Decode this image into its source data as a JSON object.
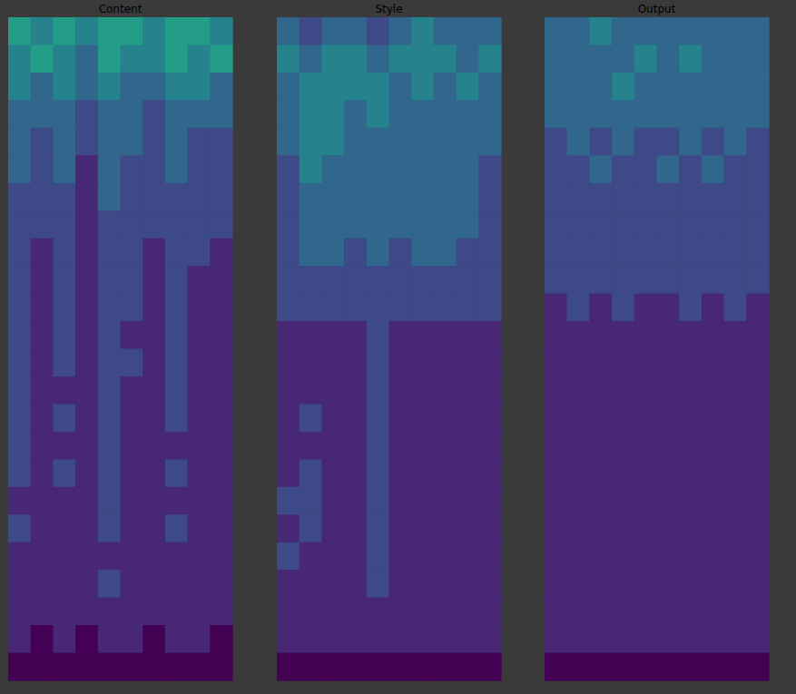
{
  "chart_data": [
    {
      "type": "heatmap",
      "title": "Content",
      "tick_labels": false,
      "color_range": [
        0,
        9
      ],
      "cells": [
        [
          5,
          4,
          5,
          4,
          5,
          5,
          4,
          5,
          5,
          4
        ],
        [
          4,
          5,
          4,
          3,
          5,
          4,
          4,
          5,
          4,
          5
        ],
        [
          4,
          3,
          4,
          3,
          4,
          3,
          3,
          4,
          4,
          3
        ],
        [
          3,
          3,
          3,
          2,
          3,
          3,
          2,
          3,
          3,
          3
        ],
        [
          3,
          2,
          3,
          2,
          3,
          3,
          2,
          3,
          2,
          2
        ],
        [
          3,
          2,
          3,
          1,
          3,
          2,
          2,
          3,
          2,
          2
        ],
        [
          2,
          2,
          2,
          1,
          3,
          2,
          2,
          2,
          2,
          2
        ],
        [
          2,
          2,
          2,
          1,
          2,
          2,
          2,
          2,
          2,
          2
        ],
        [
          2,
          1,
          2,
          1,
          2,
          2,
          1,
          2,
          2,
          1
        ],
        [
          2,
          1,
          2,
          1,
          2,
          2,
          1,
          2,
          1,
          1
        ],
        [
          2,
          1,
          2,
          1,
          2,
          2,
          1,
          2,
          1,
          1
        ],
        [
          2,
          1,
          2,
          1,
          2,
          1,
          1,
          2,
          1,
          1
        ],
        [
          2,
          1,
          2,
          1,
          2,
          2,
          1,
          2,
          1,
          1
        ],
        [
          2,
          1,
          1,
          1,
          2,
          1,
          1,
          2,
          1,
          1
        ],
        [
          2,
          1,
          2,
          1,
          2,
          1,
          1,
          2,
          1,
          1
        ],
        [
          2,
          1,
          1,
          1,
          2,
          1,
          1,
          1,
          1,
          1
        ],
        [
          2,
          1,
          2,
          1,
          2,
          1,
          1,
          2,
          1,
          1
        ],
        [
          1,
          1,
          1,
          1,
          2,
          1,
          1,
          1,
          1,
          1
        ],
        [
          2,
          1,
          1,
          1,
          2,
          1,
          1,
          2,
          1,
          1
        ],
        [
          1,
          1,
          1,
          1,
          1,
          1,
          1,
          1,
          1,
          1
        ],
        [
          1,
          1,
          1,
          1,
          2,
          1,
          1,
          1,
          1,
          1
        ],
        [
          1,
          1,
          1,
          1,
          1,
          1,
          1,
          1,
          1,
          1
        ],
        [
          1,
          0,
          1,
          0,
          1,
          1,
          0,
          1,
          1,
          0
        ],
        [
          0,
          0,
          0,
          0,
          0,
          0,
          0,
          0,
          0,
          0
        ]
      ]
    },
    {
      "type": "heatmap",
      "title": "Style",
      "tick_labels": false,
      "color_range": [
        0,
        9
      ],
      "cells": [
        [
          3,
          2,
          3,
          3,
          2,
          3,
          4,
          3,
          3,
          3
        ],
        [
          4,
          3,
          4,
          4,
          3,
          4,
          4,
          4,
          3,
          4
        ],
        [
          3,
          4,
          4,
          4,
          4,
          3,
          4,
          3,
          4,
          3
        ],
        [
          3,
          4,
          4,
          3,
          4,
          3,
          3,
          3,
          3,
          3
        ],
        [
          3,
          4,
          4,
          3,
          3,
          3,
          3,
          3,
          3,
          3
        ],
        [
          2,
          4,
          3,
          3,
          3,
          3,
          3,
          3,
          3,
          2
        ],
        [
          2,
          3,
          3,
          3,
          3,
          3,
          3,
          3,
          3,
          2
        ],
        [
          2,
          3,
          3,
          3,
          3,
          3,
          3,
          3,
          3,
          2
        ],
        [
          2,
          3,
          3,
          2,
          3,
          2,
          3,
          3,
          2,
          2
        ],
        [
          2,
          2,
          2,
          2,
          2,
          2,
          2,
          2,
          2,
          2
        ],
        [
          2,
          2,
          2,
          2,
          2,
          2,
          2,
          2,
          2,
          2
        ],
        [
          1,
          1,
          1,
          1,
          2,
          1,
          1,
          1,
          1,
          1
        ],
        [
          1,
          1,
          1,
          1,
          2,
          1,
          1,
          1,
          1,
          1
        ],
        [
          1,
          1,
          1,
          1,
          2,
          1,
          1,
          1,
          1,
          1
        ],
        [
          1,
          2,
          1,
          1,
          2,
          1,
          1,
          1,
          1,
          1
        ],
        [
          1,
          1,
          1,
          1,
          2,
          1,
          1,
          1,
          1,
          1
        ],
        [
          1,
          2,
          1,
          1,
          2,
          1,
          1,
          1,
          1,
          1
        ],
        [
          2,
          2,
          1,
          1,
          2,
          1,
          1,
          1,
          1,
          1
        ],
        [
          1,
          2,
          1,
          1,
          2,
          1,
          1,
          1,
          1,
          1
        ],
        [
          2,
          1,
          1,
          1,
          2,
          1,
          1,
          1,
          1,
          1
        ],
        [
          1,
          1,
          1,
          1,
          2,
          1,
          1,
          1,
          1,
          1
        ],
        [
          1,
          1,
          1,
          1,
          1,
          1,
          1,
          1,
          1,
          1
        ],
        [
          1,
          1,
          1,
          1,
          1,
          1,
          1,
          1,
          1,
          1
        ],
        [
          0,
          0,
          0,
          0,
          0,
          0,
          0,
          0,
          0,
          0
        ]
      ]
    },
    {
      "type": "heatmap",
      "title": "Output",
      "tick_labels": false,
      "color_range": [
        0,
        9
      ],
      "cells": [
        [
          3,
          3,
          4,
          3,
          3,
          3,
          3,
          3,
          3,
          3
        ],
        [
          3,
          3,
          3,
          3,
          4,
          3,
          4,
          3,
          3,
          3
        ],
        [
          3,
          3,
          3,
          4,
          3,
          3,
          3,
          3,
          3,
          3
        ],
        [
          3,
          3,
          3,
          3,
          3,
          3,
          3,
          3,
          3,
          3
        ],
        [
          2,
          3,
          2,
          3,
          2,
          2,
          3,
          2,
          3,
          2
        ],
        [
          2,
          2,
          3,
          2,
          2,
          3,
          2,
          3,
          2,
          2
        ],
        [
          2,
          2,
          2,
          2,
          2,
          2,
          2,
          2,
          2,
          2
        ],
        [
          2,
          2,
          2,
          2,
          2,
          2,
          2,
          2,
          2,
          2
        ],
        [
          2,
          2,
          2,
          2,
          2,
          2,
          2,
          2,
          2,
          2
        ],
        [
          2,
          2,
          2,
          2,
          2,
          2,
          2,
          2,
          2,
          2
        ],
        [
          1,
          2,
          1,
          2,
          1,
          1,
          2,
          1,
          2,
          1
        ],
        [
          1,
          1,
          1,
          1,
          1,
          1,
          1,
          1,
          1,
          1
        ],
        [
          1,
          1,
          1,
          1,
          1,
          1,
          1,
          1,
          1,
          1
        ],
        [
          1,
          1,
          1,
          1,
          1,
          1,
          1,
          1,
          1,
          1
        ],
        [
          1,
          1,
          1,
          1,
          1,
          1,
          1,
          1,
          1,
          1
        ],
        [
          1,
          1,
          1,
          1,
          1,
          1,
          1,
          1,
          1,
          1
        ],
        [
          1,
          1,
          1,
          1,
          1,
          1,
          1,
          1,
          1,
          1
        ],
        [
          1,
          1,
          1,
          1,
          1,
          1,
          1,
          1,
          1,
          1
        ],
        [
          1,
          1,
          1,
          1,
          1,
          1,
          1,
          1,
          1,
          1
        ],
        [
          1,
          1,
          1,
          1,
          1,
          1,
          1,
          1,
          1,
          1
        ],
        [
          1,
          1,
          1,
          1,
          1,
          1,
          1,
          1,
          1,
          1
        ],
        [
          1,
          1,
          1,
          1,
          1,
          1,
          1,
          1,
          1,
          1
        ],
        [
          1,
          1,
          1,
          1,
          1,
          1,
          1,
          1,
          1,
          1
        ],
        [
          0,
          0,
          0,
          0,
          0,
          0,
          0,
          0,
          0,
          0
        ]
      ]
    }
  ]
}
